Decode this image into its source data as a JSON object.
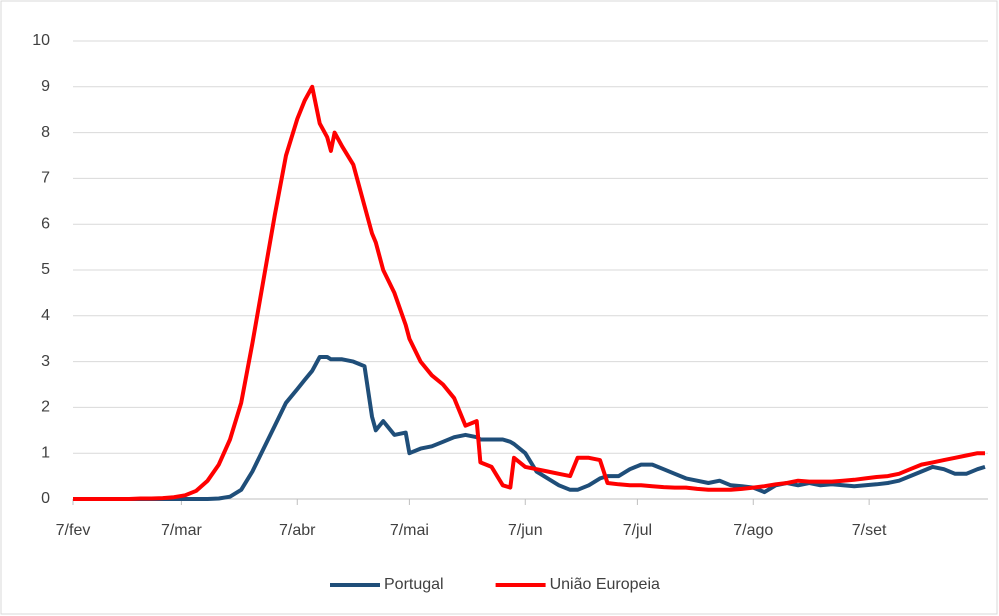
{
  "chart_data": {
    "type": "line",
    "x": [
      "7/fev",
      "10/fev",
      "13/fev",
      "16/fev",
      "19/fev",
      "22/fev",
      "25/fev",
      "28/fev",
      "2/mar",
      "5/mar",
      "8/mar",
      "11/mar",
      "14/mar",
      "17/mar",
      "20/mar",
      "23/mar",
      "26/mar",
      "29/mar",
      "1/abr",
      "4/abr",
      "7/abr",
      "9/abr",
      "11/abr",
      "13/abr",
      "15/abr",
      "16/abr",
      "17/abr",
      "19/abr",
      "22/abr",
      "25/abr",
      "27/abr",
      "28/abr",
      "30/abr",
      "3/mai",
      "6/mai",
      "7/mai",
      "10/mai",
      "13/mai",
      "16/mai",
      "19/mai",
      "22/mai",
      "25/mai",
      "26/mai",
      "29/mai",
      "1/jun",
      "3/jun",
      "4/jun",
      "7/jun",
      "10/jun",
      "13/jun",
      "16/jun",
      "19/jun",
      "21/jun",
      "24/jun",
      "27/jun",
      "29/jun",
      "2/jul",
      "5/jul",
      "8/jul",
      "11/jul",
      "14/jul",
      "17/jul",
      "20/jul",
      "23/jul",
      "26/jul",
      "29/jul",
      "1/ago",
      "4/ago",
      "7/ago",
      "10/ago",
      "13/ago",
      "16/ago",
      "19/ago",
      "22/ago",
      "25/ago",
      "28/ago",
      "31/ago",
      "3/set",
      "6/set",
      "9/set",
      "12/set",
      "15/set",
      "18/set",
      "21/set",
      "24/set",
      "27/set",
      "30/set",
      "3/out",
      "6/out",
      "8/out"
    ],
    "series": [
      {
        "name": "Portugal",
        "color": "#1f4e79",
        "values": [
          0,
          0,
          0,
          0,
          0,
          0,
          0,
          0,
          0,
          0,
          0,
          0,
          0,
          0.01,
          0.05,
          0.2,
          0.6,
          1.1,
          1.6,
          2.1,
          2.4,
          2.6,
          2.8,
          3.1,
          3.1,
          3.05,
          3.05,
          3.05,
          3.0,
          2.9,
          1.8,
          1.5,
          1.7,
          1.4,
          1.45,
          1.0,
          1.1,
          1.15,
          1.25,
          1.35,
          1.4,
          1.35,
          1.3,
          1.3,
          1.3,
          1.25,
          1.2,
          1.0,
          0.6,
          0.45,
          0.3,
          0.2,
          0.2,
          0.3,
          0.45,
          0.5,
          0.5,
          0.65,
          0.75,
          0.75,
          0.65,
          0.55,
          0.45,
          0.4,
          0.35,
          0.4,
          0.3,
          0.28,
          0.25,
          0.15,
          0.3,
          0.35,
          0.3,
          0.35,
          0.3,
          0.32,
          0.3,
          0.28,
          0.3,
          0.32,
          0.35,
          0.4,
          0.5,
          0.6,
          0.7,
          0.65,
          0.55,
          0.55,
          0.65,
          0.7
        ]
      },
      {
        "name": "União Europeia",
        "color": "#ff0000",
        "values": [
          0,
          0,
          0,
          0,
          0,
          0,
          0.01,
          0.01,
          0.02,
          0.04,
          0.08,
          0.18,
          0.4,
          0.75,
          1.3,
          2.1,
          3.4,
          4.8,
          6.2,
          7.5,
          8.3,
          8.7,
          9.0,
          8.2,
          7.9,
          7.6,
          8.0,
          7.7,
          7.3,
          6.4,
          5.8,
          5.6,
          5.0,
          4.5,
          3.8,
          3.5,
          3.0,
          2.7,
          2.5,
          2.2,
          1.6,
          1.7,
          0.8,
          0.7,
          0.3,
          0.25,
          0.9,
          0.7,
          0.65,
          0.6,
          0.55,
          0.5,
          0.9,
          0.9,
          0.85,
          0.35,
          0.32,
          0.3,
          0.3,
          0.28,
          0.26,
          0.25,
          0.25,
          0.22,
          0.2,
          0.2,
          0.2,
          0.22,
          0.25,
          0.28,
          0.32,
          0.35,
          0.4,
          0.38,
          0.38,
          0.38,
          0.4,
          0.42,
          0.45,
          0.48,
          0.5,
          0.55,
          0.65,
          0.75,
          0.8,
          0.85,
          0.9,
          0.95,
          1.0,
          1.0
        ]
      }
    ],
    "xlim": [
      "7/fev",
      "8/out"
    ],
    "xticks": [
      "7/fev",
      "7/mar",
      "7/abr",
      "7/mai",
      "7/jun",
      "7/jul",
      "7/ago",
      "7/set"
    ],
    "ylim": [
      0,
      10
    ],
    "yticks": [
      0,
      1,
      2,
      3,
      4,
      5,
      6,
      7,
      8,
      9,
      10
    ],
    "grid": true,
    "legend": "bottom"
  }
}
